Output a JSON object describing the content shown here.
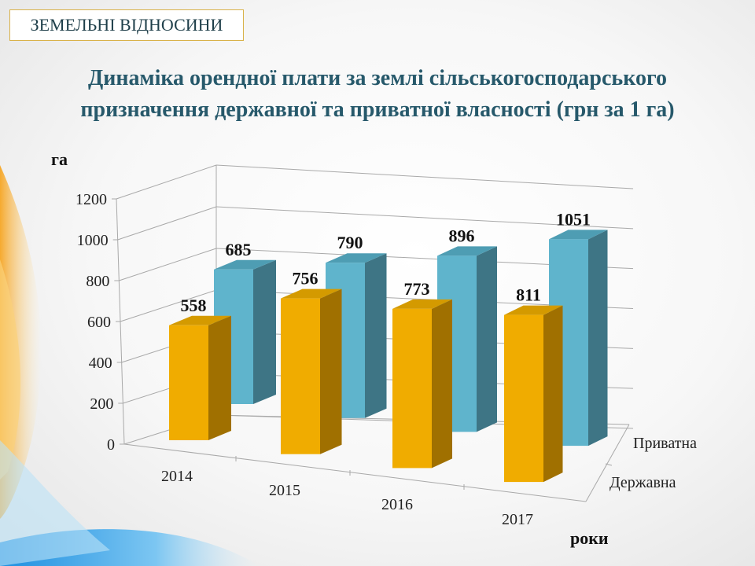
{
  "header": {
    "badge": "ЗЕМЕЛЬНІ ВІДНОСИНИ"
  },
  "title_line1": "Динаміка  орендної плати за землі сільськогосподарського",
  "title_line2": "призначення державної та приватної власності (грн за 1 га)",
  "chart_data": {
    "type": "bar",
    "style": "3d-clustered-depth",
    "categories": [
      "2014",
      "2015",
      "2016",
      "2017"
    ],
    "series": [
      {
        "name": "Державна",
        "values": [
          558,
          756,
          773,
          811
        ],
        "color": "#F0AC00"
      },
      {
        "name": "Приватна",
        "values": [
          685,
          790,
          896,
          1051
        ],
        "color": "#5FB4CC"
      }
    ],
    "ylabel": "га",
    "xlabel": "роки",
    "ylim": [
      0,
      1200
    ],
    "yticks": [
      "0",
      "200",
      "400",
      "600",
      "800",
      "1000",
      "1200"
    ],
    "grid": true,
    "data_labels": true
  }
}
